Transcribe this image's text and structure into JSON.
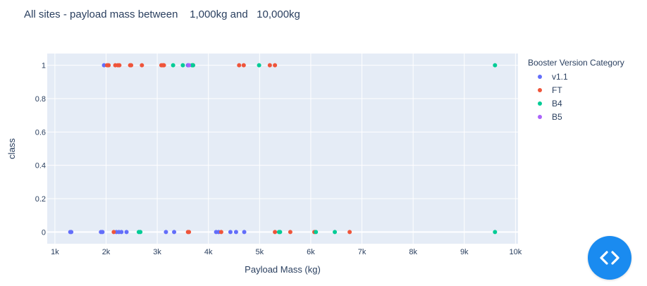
{
  "chart_data": {
    "type": "scatter",
    "title": "All sites - payload mass between    1,000kg and   10,000kg",
    "xlabel": "Payload Mass (kg)",
    "ylabel": "class",
    "xlim": [
      850,
      10050
    ],
    "ylim": [
      -0.07,
      1.07
    ],
    "x_ticks": [
      1000,
      2000,
      3000,
      4000,
      5000,
      6000,
      7000,
      8000,
      9000,
      10000
    ],
    "x_tick_labels": [
      "1k",
      "2k",
      "3k",
      "4k",
      "5k",
      "6k",
      "7k",
      "8k",
      "9k",
      "10k"
    ],
    "y_ticks": [
      0,
      0.2,
      0.4,
      0.6,
      0.8,
      1
    ],
    "y_tick_labels": [
      "0",
      "0.2",
      "0.4",
      "0.6",
      "0.8",
      "1"
    ],
    "grid": true,
    "legend_title": "Booster Version Category",
    "legend_position": "right",
    "series": [
      {
        "name": "v1.1",
        "color": "#636efa",
        "x": [
          1300,
          1320,
          1900,
          1930,
          2200,
          2250,
          2300,
          2400,
          3170,
          3330,
          4150,
          4200,
          4430,
          4540,
          4700,
          1960,
          3600
        ],
        "y": [
          0,
          0,
          0,
          0,
          0,
          0,
          0,
          0,
          0,
          0,
          0,
          0,
          0,
          0,
          0,
          1,
          1
        ]
      },
      {
        "name": "FT",
        "color": "#ef553b",
        "x": [
          2150,
          3600,
          3620,
          4250,
          5300,
          5600,
          6070,
          6760,
          2020,
          2050,
          2180,
          2230,
          2260,
          2470,
          2490,
          2700,
          3080,
          3110,
          3130,
          3700,
          4600,
          4690,
          5200,
          5300
        ],
        "y": [
          0,
          0,
          0,
          0,
          0,
          0,
          0,
          0,
          1,
          1,
          1,
          1,
          1,
          1,
          1,
          1,
          1,
          1,
          1,
          1,
          1,
          1,
          1,
          1
        ]
      },
      {
        "name": "B4",
        "color": "#00cc96",
        "x": [
          2640,
          2670,
          5380,
          5400,
          6100,
          6470,
          9600,
          3310,
          3500,
          3680,
          3700,
          4990,
          9600
        ],
        "y": [
          0,
          0,
          0,
          0,
          0,
          0,
          0,
          1,
          1,
          1,
          1,
          1,
          1
        ]
      },
      {
        "name": "B5",
        "color": "#ab63fa",
        "x": [
          3620
        ],
        "y": [
          1
        ]
      }
    ]
  },
  "ui": {
    "fab_icon": "code-icon",
    "colors": {
      "plot_bg": "#e5ecf6",
      "fab": "#1a8bf0"
    }
  }
}
